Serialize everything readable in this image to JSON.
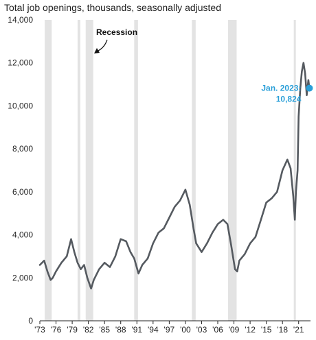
{
  "chart_data": {
    "type": "line",
    "title": "Total job openings, thousands, seasonally adjusted",
    "xlabel": "",
    "ylabel": "",
    "ylim": [
      0,
      14000
    ],
    "xlim": [
      1973,
      2023.2
    ],
    "y_ticks": [
      0,
      2000,
      4000,
      6000,
      8000,
      10000,
      12000,
      14000
    ],
    "y_tick_labels": [
      "0",
      "2,000",
      "4,000",
      "6,000",
      "8,000",
      "10,000",
      "12,000",
      "14,000"
    ],
    "x_ticks": [
      1973,
      1976,
      1979,
      1982,
      1985,
      1988,
      1991,
      1994,
      1997,
      2000,
      2003,
      2006,
      2009,
      2012,
      2015,
      2018,
      2021
    ],
    "x_tick_labels": [
      "'73",
      "'76",
      "'79",
      "'82",
      "'85",
      "'88",
      "'91",
      "'94",
      "'97",
      "'00",
      "'03",
      "'06",
      "'09",
      "'12",
      "'15",
      "'18",
      "'21"
    ],
    "grid": false,
    "recessions": [
      {
        "start": 1973.9,
        "end": 1975.2
      },
      {
        "start": 1980.0,
        "end": 1980.5
      },
      {
        "start": 1981.5,
        "end": 1982.9
      },
      {
        "start": 1990.5,
        "end": 1991.2
      },
      {
        "start": 2001.2,
        "end": 2001.9
      },
      {
        "start": 2007.9,
        "end": 2009.5
      },
      {
        "start": 2020.1,
        "end": 2020.4
      }
    ],
    "recession_label": "Recession",
    "series": [
      {
        "color": "#555a60",
        "x": [
          1973.0,
          1973.8,
          1974.4,
          1975.0,
          1975.4,
          1976.0,
          1977.0,
          1978.0,
          1978.8,
          1979.4,
          1980.0,
          1980.6,
          1981.2,
          1981.8,
          1982.5,
          1983.0,
          1984.0,
          1985.0,
          1986.0,
          1987.0,
          1988.0,
          1989.0,
          1989.8,
          1990.5,
          1991.3,
          1992.0,
          1993.0,
          1994.0,
          1995.0,
          1996.0,
          1997.0,
          1998.0,
          1999.0,
          2000.0,
          2000.8,
          2001.5,
          2002.0,
          2003.0,
          2004.0,
          2005.0,
          2006.0,
          2007.0,
          2007.8,
          2008.5,
          2009.2,
          2009.6,
          2010.0,
          2011.0,
          2012.0,
          2013.0,
          2014.0,
          2015.0,
          2016.0,
          2017.0,
          2018.0,
          2018.9,
          2019.5,
          2020.0,
          2020.3,
          2020.5,
          2020.8,
          2021.0,
          2021.3,
          2021.6,
          2021.9,
          2022.2,
          2022.5,
          2022.8,
          2023.0
        ],
        "y": [
          2600,
          2800,
          2300,
          1900,
          2000,
          2300,
          2700,
          3000,
          3800,
          3200,
          2700,
          2400,
          2600,
          2000,
          1500,
          1900,
          2400,
          2700,
          2500,
          3000,
          3800,
          3700,
          3200,
          2900,
          2200,
          2600,
          2900,
          3600,
          4100,
          4300,
          4800,
          5300,
          5600,
          6100,
          5400,
          4300,
          3600,
          3200,
          3600,
          4100,
          4500,
          4700,
          4500,
          3500,
          2400,
          2300,
          2800,
          3100,
          3600,
          3900,
          4700,
          5500,
          5700,
          6000,
          7000,
          7500,
          7100,
          5800,
          4700,
          6000,
          7000,
          9500,
          10800,
          11600,
          12000,
          11500,
          10500,
          11200,
          10824
        ]
      }
    ],
    "annotation": {
      "label": "Jan. 2023:",
      "value_label": "10,824",
      "x": 2023.0,
      "y": 10824,
      "color": "#2a9fd8"
    }
  }
}
